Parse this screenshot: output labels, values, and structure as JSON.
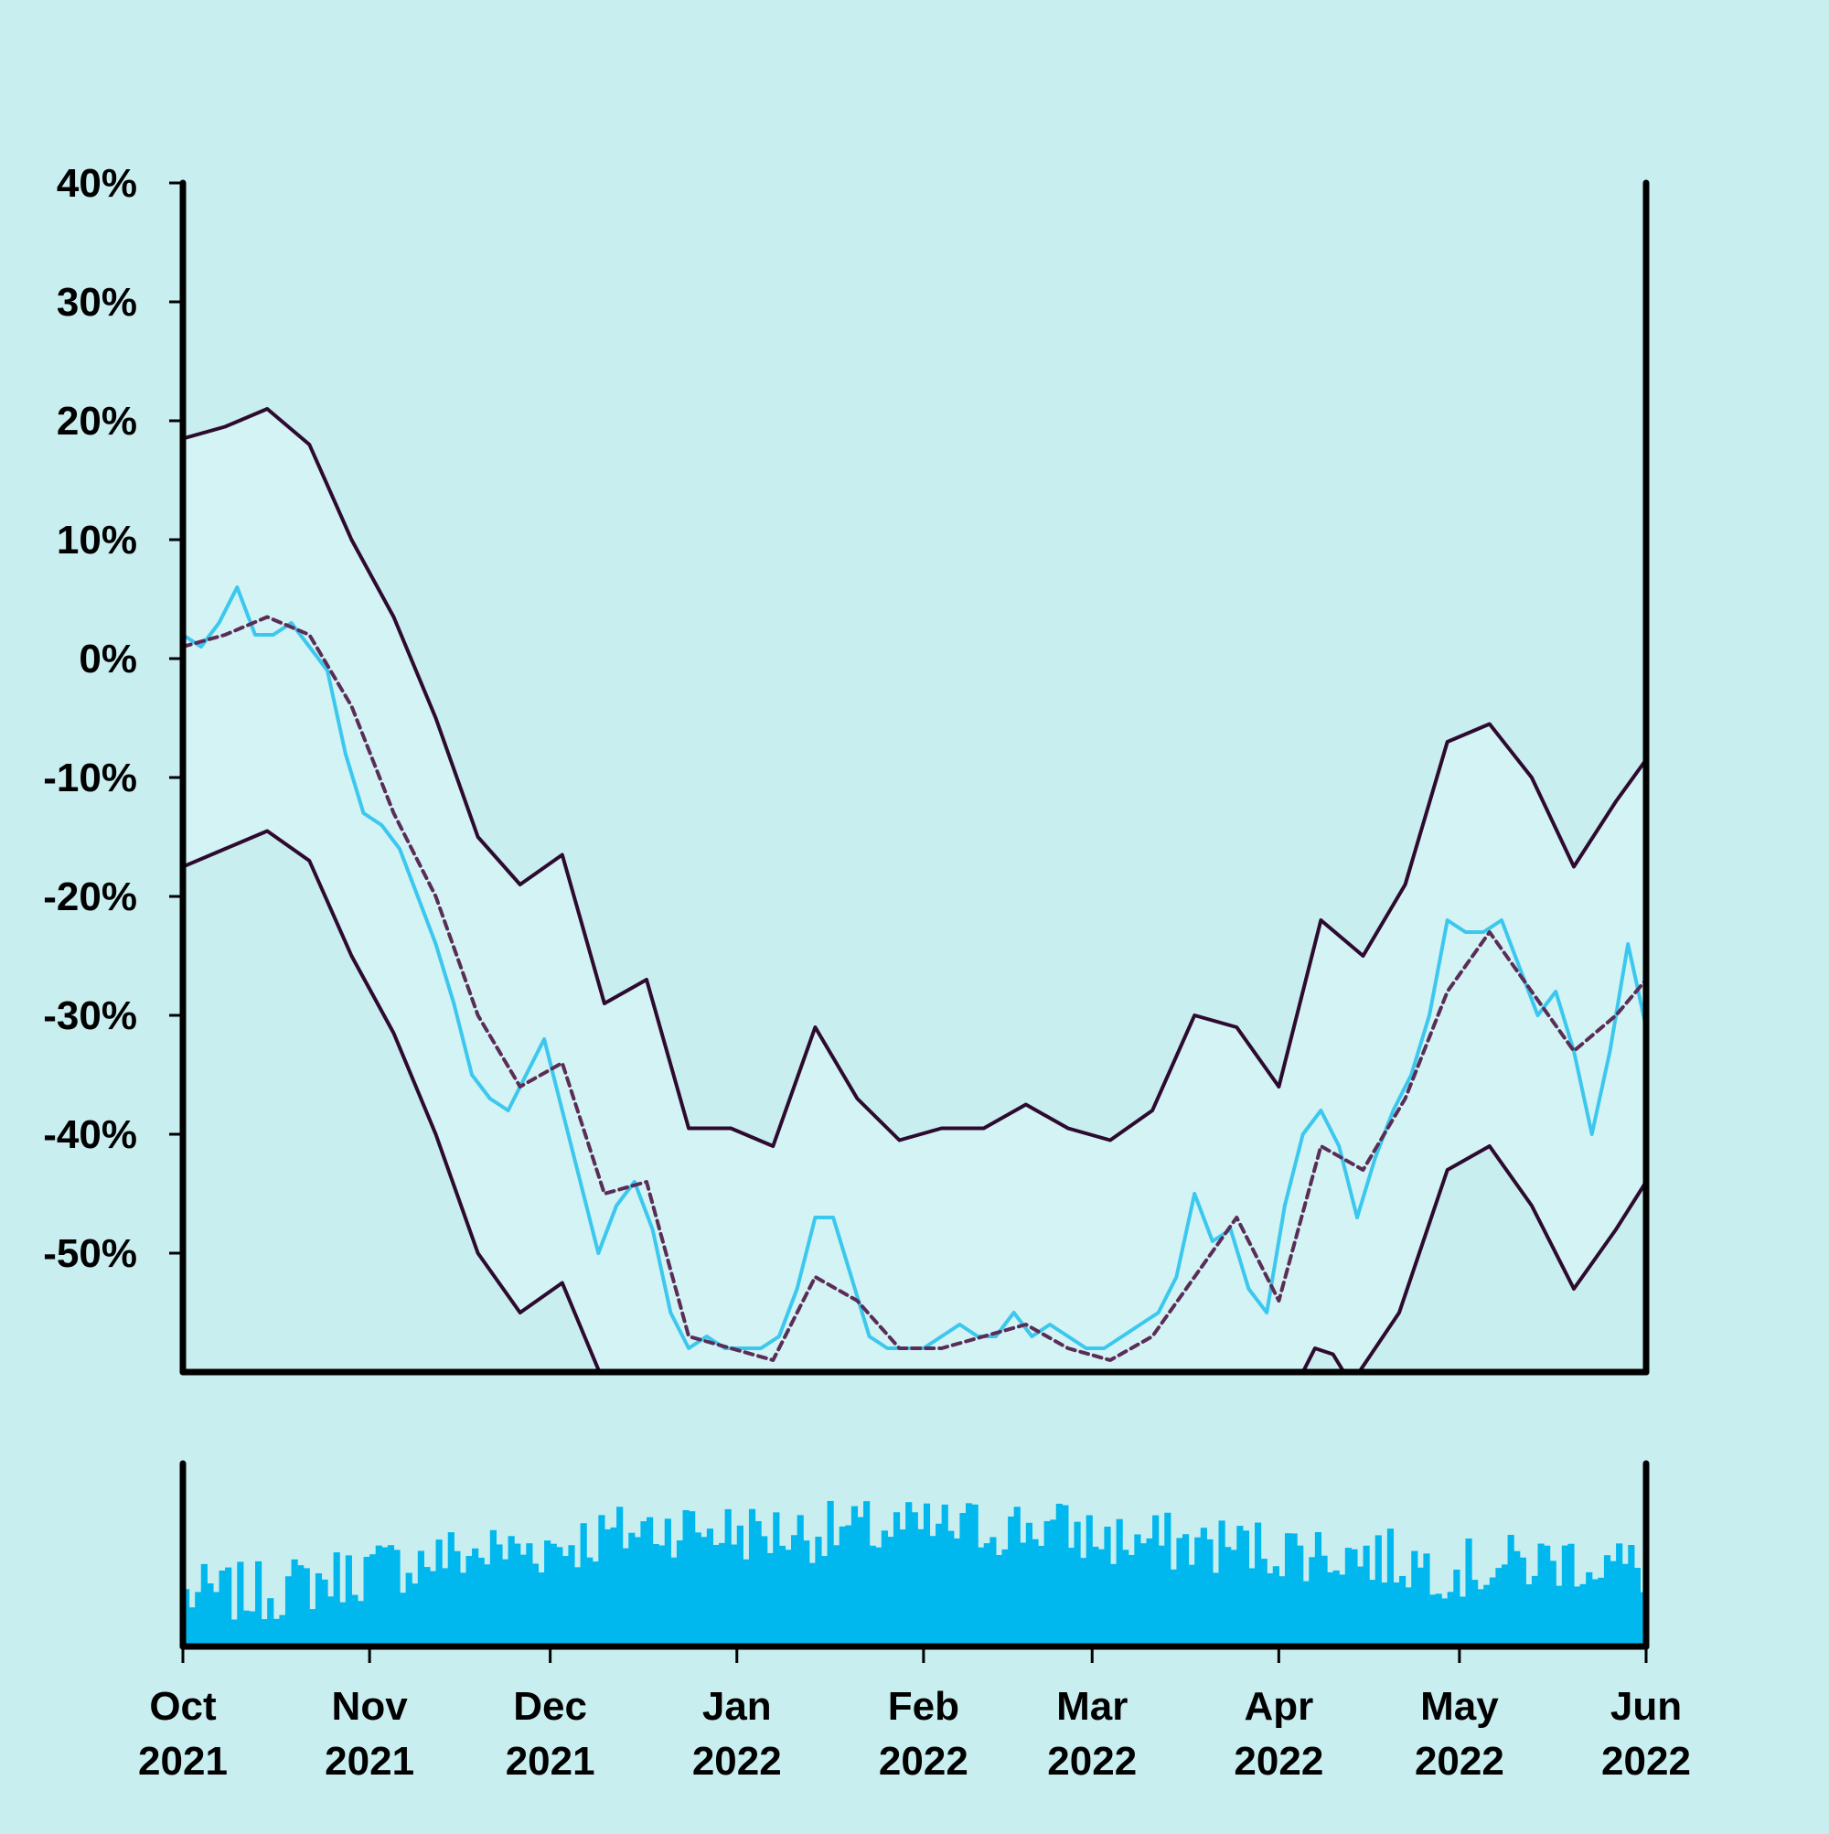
{
  "chart_data": [
    {
      "type": "line",
      "title": "",
      "xlabel": "",
      "ylabel": "",
      "y_unit": "%",
      "ylim": [
        -60,
        40
      ],
      "xlim": [
        "2021-10-01",
        "2022-06-01"
      ],
      "yticks": [
        "40%",
        "30%",
        "20%",
        "10%",
        "0%",
        "-10%",
        "-20%",
        "-30%",
        "-40%",
        "-50%"
      ],
      "ytick_values": [
        40,
        30,
        20,
        10,
        0,
        -10,
        -20,
        -30,
        -40,
        -50
      ],
      "grid": false,
      "legend": "none",
      "bands": {
        "description_free": true,
        "fill_color": "#d3f3f5",
        "line_color": "#2d0a2e"
      },
      "series": [
        {
          "role": "price",
          "color": "#3cc8ee",
          "style": "solid",
          "points": [
            [
              "2021-10-01",
              2
            ],
            [
              "2021-10-04",
              1
            ],
            [
              "2021-10-07",
              3
            ],
            [
              "2021-10-10",
              6
            ],
            [
              "2021-10-13",
              2
            ],
            [
              "2021-10-16",
              2
            ],
            [
              "2021-10-19",
              3
            ],
            [
              "2021-10-22",
              1
            ],
            [
              "2021-10-25",
              -1
            ],
            [
              "2021-10-28",
              -8
            ],
            [
              "2021-10-31",
              -13
            ],
            [
              "2021-11-03",
              -14
            ],
            [
              "2021-11-06",
              -16
            ],
            [
              "2021-11-09",
              -20
            ],
            [
              "2021-11-12",
              -24
            ],
            [
              "2021-11-15",
              -29
            ],
            [
              "2021-11-18",
              -35
            ],
            [
              "2021-11-21",
              -37
            ],
            [
              "2021-11-24",
              -38
            ],
            [
              "2021-11-27",
              -35
            ],
            [
              "2021-11-30",
              -32
            ],
            [
              "2021-12-03",
              -38
            ],
            [
              "2021-12-06",
              -44
            ],
            [
              "2021-12-09",
              -50
            ],
            [
              "2021-12-12",
              -46
            ],
            [
              "2021-12-15",
              -44
            ],
            [
              "2021-12-18",
              -48
            ],
            [
              "2021-12-21",
              -55
            ],
            [
              "2021-12-24",
              -58
            ],
            [
              "2021-12-27",
              -57
            ],
            [
              "2021-12-30",
              -58
            ],
            [
              "2022-01-02",
              -58
            ],
            [
              "2022-01-05",
              -58
            ],
            [
              "2022-01-08",
              -57
            ],
            [
              "2022-01-11",
              -53
            ],
            [
              "2022-01-14",
              -47
            ],
            [
              "2022-01-17",
              -47
            ],
            [
              "2022-01-20",
              -52
            ],
            [
              "2022-01-23",
              -57
            ],
            [
              "2022-01-26",
              -58
            ],
            [
              "2022-01-29",
              -58
            ],
            [
              "2022-02-01",
              -58
            ],
            [
              "2022-02-04",
              -57
            ],
            [
              "2022-02-07",
              -56
            ],
            [
              "2022-02-10",
              -57
            ],
            [
              "2022-02-13",
              -57
            ],
            [
              "2022-02-16",
              -55
            ],
            [
              "2022-02-19",
              -57
            ],
            [
              "2022-02-22",
              -56
            ],
            [
              "2022-02-25",
              -57
            ],
            [
              "2022-02-28",
              -58
            ],
            [
              "2022-03-03",
              -58
            ],
            [
              "2022-03-06",
              -57
            ],
            [
              "2022-03-09",
              -56
            ],
            [
              "2022-03-12",
              -55
            ],
            [
              "2022-03-15",
              -52
            ],
            [
              "2022-03-18",
              -45
            ],
            [
              "2022-03-21",
              -49
            ],
            [
              "2022-03-24",
              -48
            ],
            [
              "2022-03-27",
              -53
            ],
            [
              "2022-03-30",
              -55
            ],
            [
              "2022-04-02",
              -46
            ],
            [
              "2022-04-05",
              -40
            ],
            [
              "2022-04-08",
              -38
            ],
            [
              "2022-04-11",
              -41
            ],
            [
              "2022-04-14",
              -47
            ],
            [
              "2022-04-17",
              -42
            ],
            [
              "2022-04-20",
              -38
            ],
            [
              "2022-04-23",
              -35
            ],
            [
              "2022-04-26",
              -30
            ],
            [
              "2022-04-29",
              -22
            ],
            [
              "2022-05-02",
              -23
            ],
            [
              "2022-05-05",
              -23
            ],
            [
              "2022-05-08",
              -22
            ],
            [
              "2022-05-11",
              -26
            ],
            [
              "2022-05-14",
              -30
            ],
            [
              "2022-05-17",
              -28
            ],
            [
              "2022-05-20",
              -33
            ],
            [
              "2022-05-23",
              -40
            ],
            [
              "2022-05-26",
              -33
            ],
            [
              "2022-05-29",
              -24
            ],
            [
              "2022-06-01",
              -31
            ]
          ]
        },
        {
          "role": "moving-average",
          "color": "#5a2d56",
          "style": "dashed",
          "points": [
            [
              "2021-10-01",
              1
            ],
            [
              "2021-10-08",
              2
            ],
            [
              "2021-10-15",
              3.5
            ],
            [
              "2021-10-22",
              2
            ],
            [
              "2021-10-29",
              -4
            ],
            [
              "2021-11-05",
              -13
            ],
            [
              "2021-11-12",
              -20
            ],
            [
              "2021-11-19",
              -30
            ],
            [
              "2021-11-26",
              -36
            ],
            [
              "2021-12-03",
              -34
            ],
            [
              "2021-12-10",
              -45
            ],
            [
              "2021-12-17",
              -44
            ],
            [
              "2021-12-24",
              -57
            ],
            [
              "2021-12-31",
              -58
            ],
            [
              "2022-01-07",
              -59
            ],
            [
              "2022-01-14",
              -52
            ],
            [
              "2022-01-21",
              -54
            ],
            [
              "2022-01-28",
              -58
            ],
            [
              "2022-02-04",
              -58
            ],
            [
              "2022-02-11",
              -57
            ],
            [
              "2022-02-18",
              -56
            ],
            [
              "2022-02-25",
              -58
            ],
            [
              "2022-03-04",
              -59
            ],
            [
              "2022-03-11",
              -57
            ],
            [
              "2022-03-18",
              -52
            ],
            [
              "2022-03-25",
              -47
            ],
            [
              "2022-04-01",
              -54
            ],
            [
              "2022-04-08",
              -41
            ],
            [
              "2022-04-15",
              -43
            ],
            [
              "2022-04-22",
              -37
            ],
            [
              "2022-04-29",
              -28
            ],
            [
              "2022-05-06",
              -23
            ],
            [
              "2022-05-13",
              -28
            ],
            [
              "2022-05-20",
              -33
            ],
            [
              "2022-05-27",
              -30
            ],
            [
              "2022-06-01",
              -27
            ]
          ]
        },
        {
          "role": "upper-band",
          "color": "#2d0a2e",
          "style": "solid",
          "points": [
            [
              "2021-10-01",
              18.5
            ],
            [
              "2021-10-08",
              19.5
            ],
            [
              "2021-10-15",
              21
            ],
            [
              "2021-10-22",
              18
            ],
            [
              "2021-10-29",
              10
            ],
            [
              "2021-11-05",
              3.5
            ],
            [
              "2021-11-12",
              -5
            ],
            [
              "2021-11-19",
              -15
            ],
            [
              "2021-11-26",
              -19
            ],
            [
              "2021-12-03",
              -16.5
            ],
            [
              "2021-12-10",
              -29
            ],
            [
              "2021-12-17",
              -27
            ],
            [
              "2021-12-24",
              -39.5
            ],
            [
              "2021-12-31",
              -39.5
            ],
            [
              "2022-01-07",
              -41
            ],
            [
              "2022-01-14",
              -31
            ],
            [
              "2022-01-21",
              -37
            ],
            [
              "2022-01-28",
              -40.5
            ],
            [
              "2022-02-04",
              -39.5
            ],
            [
              "2022-02-11",
              -39.5
            ],
            [
              "2022-02-18",
              -37.5
            ],
            [
              "2022-02-25",
              -39.5
            ],
            [
              "2022-03-04",
              -40.5
            ],
            [
              "2022-03-11",
              -38
            ],
            [
              "2022-03-18",
              -30
            ],
            [
              "2022-03-25",
              -31
            ],
            [
              "2022-04-01",
              -36
            ],
            [
              "2022-04-08",
              -22
            ],
            [
              "2022-04-15",
              -25
            ],
            [
              "2022-04-22",
              -19
            ],
            [
              "2022-04-29",
              -7
            ],
            [
              "2022-05-06",
              -5.5
            ],
            [
              "2022-05-13",
              -10
            ],
            [
              "2022-05-20",
              -17.5
            ],
            [
              "2022-05-27",
              -12
            ],
            [
              "2022-06-01",
              -8.5
            ]
          ]
        },
        {
          "role": "lower-band",
          "color": "#2d0a2e",
          "style": "solid",
          "points": [
            [
              "2021-10-01",
              -17.5
            ],
            [
              "2021-10-08",
              -16
            ],
            [
              "2021-10-15",
              -14.5
            ],
            [
              "2021-10-22",
              -17
            ],
            [
              "2021-10-29",
              -25
            ],
            [
              "2021-11-05",
              -31.5
            ],
            [
              "2021-11-12",
              -40
            ],
            [
              "2021-11-19",
              -50
            ],
            [
              "2021-11-26",
              -55
            ],
            [
              "2021-12-03",
              -52.5
            ],
            [
              "2021-12-10",
              -61
            ],
            [
              "2022-04-04",
              -61
            ],
            [
              "2022-04-07",
              -58
            ],
            [
              "2022-04-10",
              -58.5
            ],
            [
              "2022-04-13",
              -61
            ],
            [
              "2022-04-21",
              -55
            ],
            [
              "2022-04-29",
              -43
            ],
            [
              "2022-05-06",
              -41
            ],
            [
              "2022-05-13",
              -46
            ],
            [
              "2022-05-20",
              -53
            ],
            [
              "2022-05-27",
              -48
            ],
            [
              "2022-06-01",
              -44
            ]
          ]
        }
      ]
    },
    {
      "type": "bar",
      "title": "",
      "xlabel": "",
      "ylabel": "",
      "color": "#00b8ee",
      "ylim": [
        0,
        100
      ],
      "xtick_labels": [
        [
          "Oct",
          "2021"
        ],
        [
          "Nov",
          "2021"
        ],
        [
          "Dec",
          "2021"
        ],
        [
          "Jan",
          "2022"
        ],
        [
          "Feb",
          "2022"
        ],
        [
          "Mar",
          "2022"
        ],
        [
          "Apr",
          "2022"
        ],
        [
          "May",
          "2022"
        ],
        [
          "Jun",
          "2022"
        ]
      ],
      "xtick_dates": [
        "2021-10-01",
        "2021-11-01",
        "2021-12-01",
        "2022-01-01",
        "2022-02-01",
        "2022-03-01",
        "2022-04-01",
        "2022-05-01",
        "2022-06-01"
      ],
      "profile": [
        [
          "2021-10-01",
          28
        ],
        [
          "2021-10-15",
          30
        ],
        [
          "2021-11-01",
          42
        ],
        [
          "2021-11-15",
          50
        ],
        [
          "2021-12-01",
          55
        ],
        [
          "2021-12-20",
          66
        ],
        [
          "2022-01-05",
          62
        ],
        [
          "2022-02-01",
          64
        ],
        [
          "2022-02-20",
          66
        ],
        [
          "2022-03-05",
          58
        ],
        [
          "2022-03-25",
          55
        ],
        [
          "2022-04-15",
          50
        ],
        [
          "2022-05-01",
          42
        ],
        [
          "2022-05-20",
          48
        ],
        [
          "2022-06-01",
          42
        ]
      ]
    }
  ]
}
